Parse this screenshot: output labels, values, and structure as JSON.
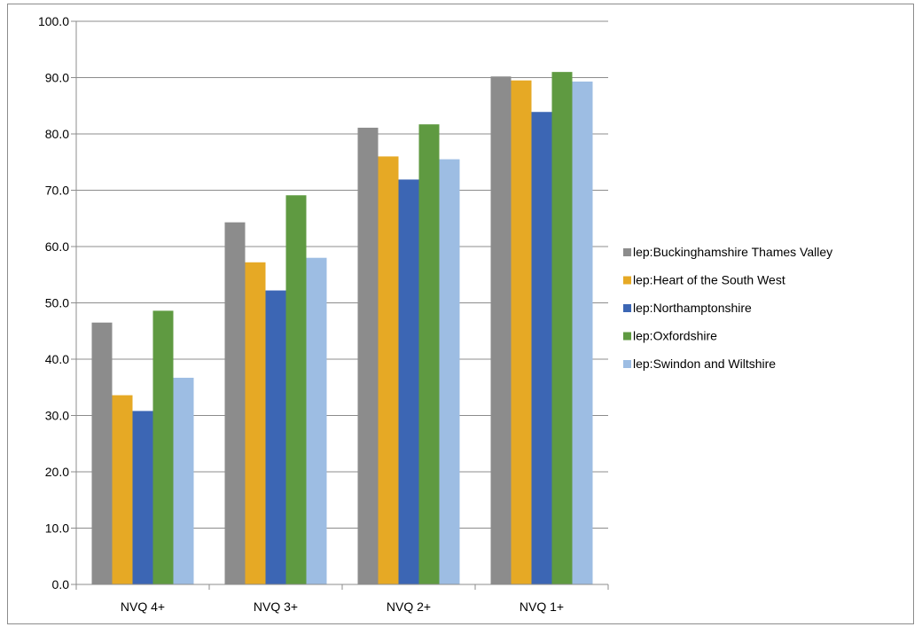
{
  "chart_data": {
    "type": "bar",
    "title": "",
    "xlabel": "",
    "ylabel": "",
    "ylim": [
      0,
      100
    ],
    "ytick_step": 10,
    "ytick_labels": [
      "0.0",
      "10.0",
      "20.0",
      "30.0",
      "40.0",
      "50.0",
      "60.0",
      "70.0",
      "80.0",
      "90.0",
      "100.0"
    ],
    "grid": true,
    "legend_position": "right",
    "categories": [
      "NVQ 4+",
      "NVQ 3+",
      "NVQ 2+",
      "NVQ 1+"
    ],
    "series": [
      {
        "name": "lep:Buckinghamshire Thames Valley",
        "color": "#8c8c8c",
        "values": [
          46.5,
          64.3,
          81.1,
          90.2
        ]
      },
      {
        "name": "lep:Heart of the South West",
        "color": "#e6a925",
        "values": [
          33.6,
          57.2,
          76.0,
          89.5
        ]
      },
      {
        "name": "lep:Northamptonshire",
        "color": "#3c66b4",
        "values": [
          30.8,
          52.2,
          71.9,
          83.9
        ]
      },
      {
        "name": "lep:Oxfordshire",
        "color": "#5f9a41",
        "values": [
          48.6,
          69.1,
          81.7,
          91.0
        ]
      },
      {
        "name": "lep:Swindon and Wiltshire",
        "color": "#9dbde3",
        "values": [
          36.7,
          58.0,
          75.5,
          89.3
        ]
      }
    ]
  }
}
